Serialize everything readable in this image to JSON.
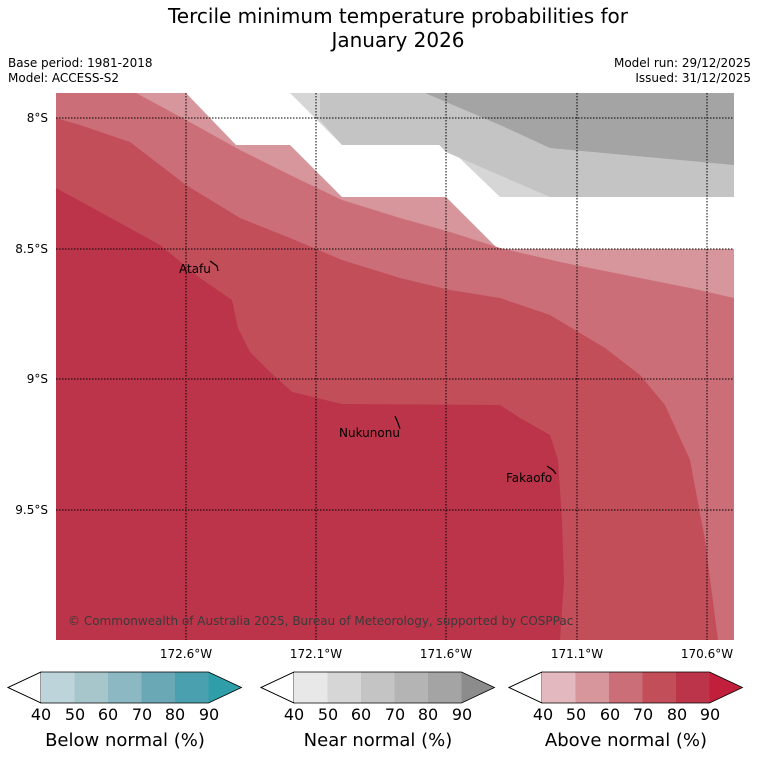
{
  "title_line1": "Tercile minimum temperature probabilities for",
  "title_line2": "January 2026",
  "base_period": "Base period: 1981-2018",
  "model": "Model: ACCESS-S2",
  "model_run": "Model run: 29/12/2025",
  "issued": "Issued: 31/12/2025",
  "latitudes": [
    "8°S",
    "8.5°S",
    "9°S",
    "9.5°S"
  ],
  "longitudes": [
    "172.6°W",
    "172.1°W",
    "171.6°W",
    "171.1°W",
    "170.6°W"
  ],
  "places": [
    "Atafu",
    "Nukunonu",
    "Fakaofo"
  ],
  "copyright": "© Commonwealth of Australia 2025, Bureau of Meteorology, supported by COSPPac",
  "colorbars": [
    {
      "label": "Below normal (%)",
      "ticks": [
        "40",
        "50",
        "60",
        "70",
        "80",
        "90"
      ],
      "colors": [
        "#ffffff",
        "#bdd4da",
        "#a7c6cc",
        "#8bb8c2",
        "#6aa8b5",
        "#4aa0ae",
        "#2f9ea8"
      ]
    },
    {
      "label": "Near normal (%)",
      "ticks": [
        "40",
        "50",
        "60",
        "70",
        "80",
        "90"
      ],
      "colors": [
        "#ffffff",
        "#e8e8e8",
        "#d6d6d6",
        "#c4c4c4",
        "#b4b4b4",
        "#a4a4a4",
        "#8c8c8c"
      ]
    },
    {
      "label": "Above normal (%)",
      "ticks": [
        "40",
        "50",
        "60",
        "70",
        "80",
        "90"
      ],
      "colors": [
        "#ffffff",
        "#e3b8be",
        "#d7959c",
        "#cb6e78",
        "#c24e5a",
        "#bb3449",
        "#c21f3c"
      ]
    }
  ]
}
